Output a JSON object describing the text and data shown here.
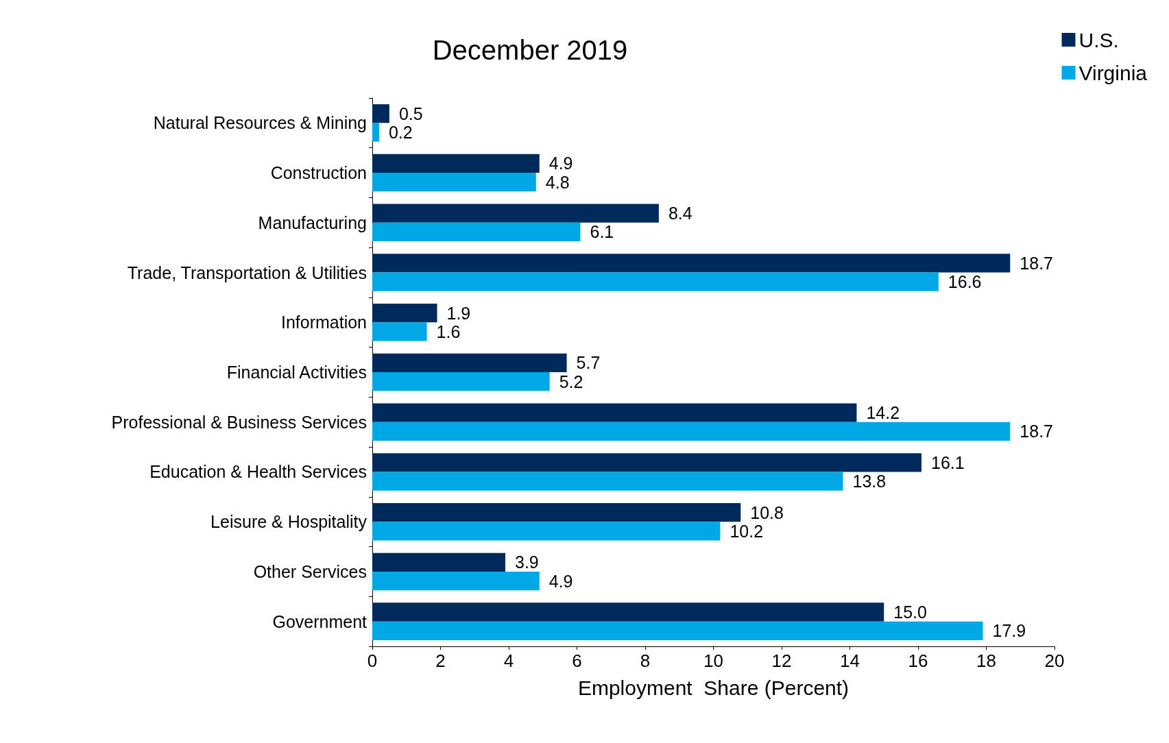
{
  "chart_data": {
    "type": "bar",
    "orientation": "horizontal",
    "title": "December 2019",
    "xlabel": "Employment  Share (Percent)",
    "categories": [
      "Natural Resources & Mining",
      "Construction",
      "Manufacturing",
      "Trade, Transportation & Utilities",
      "Information",
      "Financial Activities",
      "Professional & Business Services",
      "Education & Health Services",
      "Leisure & Hospitality",
      "Other Services",
      "Government"
    ],
    "series": [
      {
        "name": "U.S.",
        "color": "#002a5c",
        "values": [
          0.5,
          4.9,
          8.4,
          18.7,
          1.9,
          5.7,
          14.2,
          16.1,
          10.8,
          3.9,
          15.0
        ],
        "value_labels": [
          "0.5",
          "4.9",
          "8.4",
          "18.7",
          "1.9",
          "5.7",
          "14.2",
          "16.1",
          "10.8",
          "3.9",
          "15.0"
        ]
      },
      {
        "name": "Virginia",
        "color": "#00a9e6",
        "values": [
          0.2,
          4.8,
          6.1,
          16.6,
          1.6,
          5.2,
          18.7,
          13.8,
          10.2,
          4.9,
          17.9
        ],
        "value_labels": [
          "0.2",
          "4.8",
          "6.1",
          "16.6",
          "1.6",
          "5.2",
          "18.7",
          "13.8",
          "10.2",
          "4.9",
          "17.9"
        ]
      }
    ],
    "xlim": [
      0,
      20
    ],
    "xticks": [
      0,
      2,
      4,
      6,
      8,
      10,
      12,
      14,
      16,
      18,
      20
    ],
    "grid": false,
    "legend": "top right"
  }
}
